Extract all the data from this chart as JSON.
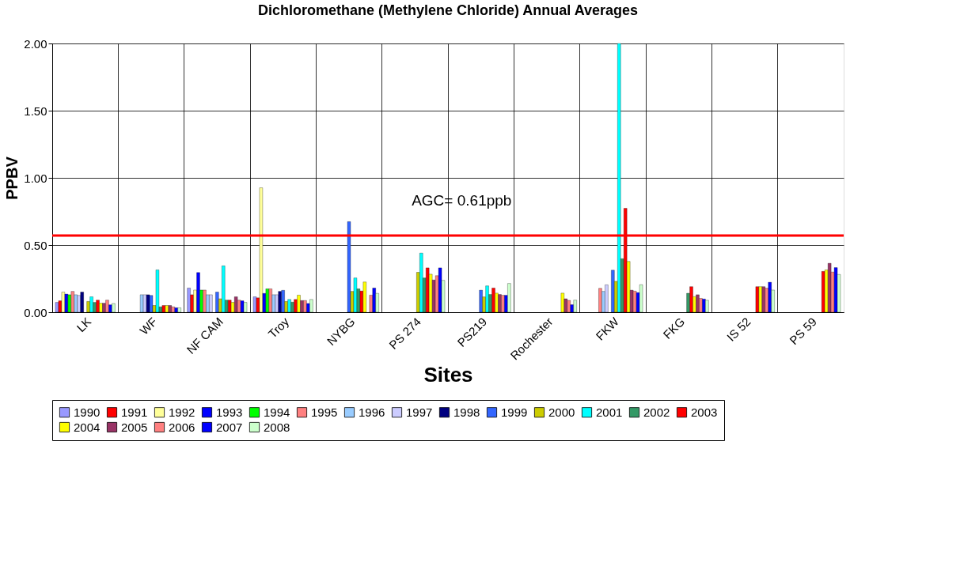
{
  "chart_data": {
    "type": "bar",
    "title": "Dichloromethane (Methylene Chloride) Annual Averages",
    "xlabel": "Sites",
    "ylabel": "PPBV",
    "categories": [
      "LK",
      "WF",
      "NF CAM",
      "Troy",
      "NYBG",
      "PS 274",
      "PS219",
      "Rochester",
      "FKW",
      "FKG",
      "IS 52",
      "PS 59"
    ],
    "ylim": [
      0,
      2
    ],
    "yticks": [
      {
        "value": 0,
        "label": "0.00"
      },
      {
        "value": 0.5,
        "label": "0.50"
      },
      {
        "value": 1,
        "label": "1.00"
      },
      {
        "value": 1.5,
        "label": "1.50"
      },
      {
        "value": 2,
        "label": "2.00"
      }
    ],
    "grid": true,
    "legend": "bottom",
    "ref_lines": [
      {
        "axis": "y",
        "value": 0.57,
        "color": "#ff0000"
      }
    ],
    "annotations": [
      "AGC= 0.61ppb"
    ],
    "series": [
      {
        "name": "1990",
        "color": "#9999ff",
        "values": [
          0.073,
          null,
          0.18,
          0.115,
          null,
          null,
          null,
          null,
          null,
          null,
          null,
          null
        ]
      },
      {
        "name": "1991",
        "color": "#ff0000",
        "values": [
          0.085,
          null,
          0.13,
          0.107,
          null,
          null,
          null,
          null,
          null,
          null,
          null,
          null
        ]
      },
      {
        "name": "1992",
        "color": "#ffff99",
        "values": [
          0.15,
          null,
          0.165,
          0.926,
          null,
          null,
          null,
          null,
          null,
          null,
          null,
          null
        ]
      },
      {
        "name": "1993",
        "color": "#0000ff",
        "values": [
          0.135,
          null,
          0.295,
          0.14,
          null,
          null,
          null,
          null,
          null,
          null,
          null,
          null
        ]
      },
      {
        "name": "1994",
        "color": "#00ff00",
        "values": [
          0.13,
          null,
          0.165,
          0.174,
          null,
          null,
          null,
          null,
          null,
          null,
          null,
          null
        ]
      },
      {
        "name": "1995",
        "color": "#ff8080",
        "values": [
          0.155,
          null,
          0.165,
          0.174,
          null,
          null,
          null,
          null,
          0.178,
          null,
          null,
          null
        ]
      },
      {
        "name": "1996",
        "color": "#99ccff",
        "values": [
          0.13,
          0.13,
          0.13,
          0.13,
          null,
          null,
          null,
          null,
          0.155,
          null,
          null,
          null
        ]
      },
      {
        "name": "1997",
        "color": "#ccccff",
        "values": [
          0.125,
          0.13,
          0.13,
          0.13,
          null,
          null,
          null,
          null,
          0.204,
          null,
          null,
          null
        ]
      },
      {
        "name": "1998",
        "color": "#000080",
        "values": [
          0.15,
          0.13,
          null,
          0.155,
          null,
          null,
          null,
          null,
          null,
          null,
          null,
          null
        ]
      },
      {
        "name": "1999",
        "color": "#3366ff",
        "values": [
          null,
          0.125,
          0.15,
          0.163,
          0.674,
          null,
          0.164,
          null,
          0.313,
          null,
          null,
          null
        ]
      },
      {
        "name": "2000",
        "color": "#cccc00",
        "values": [
          0.08,
          0.05,
          0.1,
          0.08,
          0.155,
          0.297,
          0.114,
          null,
          0.23,
          null,
          null,
          null
        ]
      },
      {
        "name": "2001",
        "color": "#00ffff",
        "values": [
          0.115,
          0.315,
          0.345,
          0.095,
          0.255,
          0.44,
          0.196,
          null,
          2.0,
          null,
          null,
          null
        ]
      },
      {
        "name": "2002",
        "color": "#339966",
        "values": [
          0.073,
          0.04,
          0.09,
          0.075,
          0.174,
          0.255,
          0.132,
          null,
          0.398,
          0.141,
          null,
          null
        ]
      },
      {
        "name": "2003",
        "color": "#ff0000",
        "values": [
          0.09,
          0.05,
          0.09,
          0.095,
          0.158,
          0.33,
          0.18,
          null,
          0.773,
          0.19,
          0.19,
          0.304
        ]
      },
      {
        "name": "2004",
        "color": "#ffff00",
        "values": [
          0.067,
          0.05,
          0.073,
          0.127,
          0.225,
          0.283,
          0.142,
          0.142,
          0.378,
          0.116,
          0.19,
          0.315
        ]
      },
      {
        "name": "2005",
        "color": "#993366",
        "values": [
          0.067,
          0.05,
          0.115,
          0.087,
          null,
          0.24,
          0.132,
          0.1,
          0.164,
          0.13,
          0.19,
          0.364
        ]
      },
      {
        "name": "2006",
        "color": "#ff8080",
        "values": [
          0.09,
          0.04,
          0.09,
          0.087,
          0.127,
          0.272,
          0.126,
          0.088,
          0.157,
          0.103,
          0.179,
          0.299
        ]
      },
      {
        "name": "2007",
        "color": "#0000ff",
        "values": [
          0.055,
          0.033,
          0.085,
          0.065,
          0.18,
          0.33,
          0.126,
          0.056,
          0.146,
          0.098,
          0.223,
          0.332
        ]
      },
      {
        "name": "2008",
        "color": "#ccffcc",
        "values": [
          0.065,
          0.033,
          0.073,
          0.095,
          0.14,
          0.237,
          0.214,
          0.09,
          0.205,
          0.089,
          0.165,
          0.281
        ]
      }
    ]
  }
}
